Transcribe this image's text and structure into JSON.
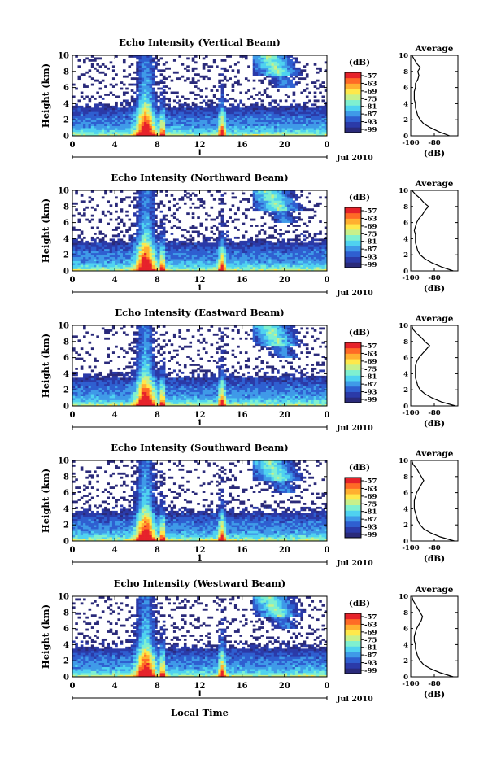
{
  "figure": {
    "xlabel": "Local Time",
    "date_label": "Jul 2010",
    "day_label": "1",
    "colorbar_title": "(dB)",
    "avg_title": "Average",
    "avg_xlabel": "(dB)"
  },
  "colors": {
    "scale": [
      "#2a2a7a",
      "#2b3aa8",
      "#2f5fd0",
      "#3f9ae8",
      "#4fd2f0",
      "#7ff0d0",
      "#c8f08a",
      "#ffe84a",
      "#ffb030",
      "#ff6a26",
      "#e6222a"
    ],
    "background": "#ffffff"
  },
  "chart_data": [
    {
      "type": "heatmap",
      "title": "Echo Intensity (Vertical Beam)",
      "ylabel": "Height (km)",
      "xlim": [
        0,
        24
      ],
      "ylim": [
        0,
        10
      ],
      "xticks": [
        "0",
        "4",
        "8",
        "12",
        "16",
        "20",
        "0"
      ],
      "yticks": [
        "0",
        "2",
        "4",
        "6",
        "8",
        "10"
      ],
      "colorbar": {
        "ticks": [
          "-57",
          "-63",
          "-69",
          "-75",
          "-81",
          "-87",
          "-93",
          "-99"
        ],
        "range": [
          -99,
          -57
        ],
        "unit": "dB"
      },
      "average_profile": {
        "xlim": [
          -100,
          -60
        ],
        "xticks": [
          "-100",
          "-80"
        ],
        "yticks": [
          "0",
          "2",
          "4",
          "6",
          "8",
          "10"
        ],
        "height": [
          0,
          0.5,
          1,
          1.5,
          2,
          2.5,
          3,
          3.5,
          4,
          4.5,
          5,
          5.5,
          6,
          6.5,
          7,
          7.5,
          8,
          8.5,
          9,
          9.5,
          10
        ],
        "db": [
          -67,
          -76,
          -83,
          -89,
          -92,
          -94,
          -95,
          -96,
          -96,
          -97,
          -97,
          -97,
          -96,
          -96,
          -94,
          -93,
          -94,
          -92,
          -95,
          -97,
          -99
        ]
      }
    },
    {
      "type": "heatmap",
      "title": "Echo Intensity (Northward Beam)",
      "ylabel": "Height (km)",
      "xlim": [
        0,
        24
      ],
      "ylim": [
        0,
        10
      ],
      "xticks": [
        "0",
        "4",
        "8",
        "12",
        "16",
        "20",
        "0"
      ],
      "yticks": [
        "0",
        "2",
        "4",
        "6",
        "8",
        "10"
      ],
      "colorbar": {
        "ticks": [
          "-57",
          "-63",
          "-69",
          "-75",
          "-81",
          "-87",
          "-93",
          "-99"
        ],
        "range": [
          -99,
          -57
        ],
        "unit": "dB"
      },
      "average_profile": {
        "xlim": [
          -100,
          -60
        ],
        "xticks": [
          "-100",
          "-80"
        ],
        "yticks": [
          "0",
          "2",
          "4",
          "6",
          "8",
          "10"
        ],
        "height": [
          0,
          0.5,
          1,
          1.5,
          2,
          2.5,
          3,
          3.5,
          4,
          4.5,
          5,
          5.5,
          6,
          6.5,
          7,
          7.5,
          8,
          8.5,
          9,
          9.5,
          10
        ],
        "db": [
          -64,
          -74,
          -82,
          -88,
          -92,
          -94,
          -95,
          -96,
          -96,
          -96,
          -97,
          -96,
          -95,
          -93,
          -90,
          -88,
          -85,
          -89,
          -92,
          -96,
          -99
        ]
      }
    },
    {
      "type": "heatmap",
      "title": "Echo Intensity (Eastward Beam)",
      "ylabel": "Height (km)",
      "xlim": [
        0,
        24
      ],
      "ylim": [
        0,
        10
      ],
      "xticks": [
        "0",
        "4",
        "8",
        "12",
        "16",
        "20",
        "0"
      ],
      "yticks": [
        "0",
        "2",
        "4",
        "6",
        "8",
        "10"
      ],
      "colorbar": {
        "ticks": [
          "-57",
          "-63",
          "-69",
          "-75",
          "-81",
          "-87",
          "-93",
          "-99"
        ],
        "range": [
          -99,
          -57
        ],
        "unit": "dB"
      },
      "average_profile": {
        "xlim": [
          -100,
          -60
        ],
        "xticks": [
          "-100",
          "-80"
        ],
        "yticks": [
          "0",
          "2",
          "4",
          "6",
          "8",
          "10"
        ],
        "height": [
          0,
          0.5,
          1,
          1.5,
          2,
          2.5,
          3,
          3.5,
          4,
          4.5,
          5,
          5.5,
          6,
          6.5,
          7,
          7.5,
          8,
          8.5,
          9,
          9.5,
          10
        ],
        "db": [
          -62,
          -74,
          -82,
          -88,
          -92,
          -94,
          -95,
          -96,
          -96,
          -96,
          -96,
          -95,
          -93,
          -90,
          -87,
          -84,
          -88,
          -91,
          -95,
          -98,
          -99
        ]
      }
    },
    {
      "type": "heatmap",
      "title": "Echo Intensity (Southward Beam)",
      "ylabel": "Height (km)",
      "xlim": [
        0,
        24
      ],
      "ylim": [
        0,
        10
      ],
      "xticks": [
        "0",
        "4",
        "8",
        "12",
        "16",
        "20",
        "0"
      ],
      "yticks": [
        "0",
        "2",
        "4",
        "6",
        "8",
        "10"
      ],
      "colorbar": {
        "ticks": [
          "-57",
          "-63",
          "-69",
          "-75",
          "-81",
          "-87",
          "-93",
          "-99"
        ],
        "range": [
          -99,
          -57
        ],
        "unit": "dB"
      },
      "average_profile": {
        "xlim": [
          -100,
          -60
        ],
        "xticks": [
          "-100",
          "-80"
        ],
        "yticks": [
          "0",
          "2",
          "4",
          "6",
          "8",
          "10"
        ],
        "height": [
          0,
          0.5,
          1,
          1.5,
          2,
          2.5,
          3,
          3.5,
          4,
          4.5,
          5,
          5.5,
          6,
          6.5,
          7,
          7.5,
          8,
          8.5,
          9,
          9.5,
          10
        ],
        "db": [
          -63,
          -75,
          -83,
          -89,
          -92,
          -94,
          -95,
          -96,
          -97,
          -97,
          -97,
          -96,
          -95,
          -93,
          -91,
          -89,
          -91,
          -93,
          -95,
          -98,
          -99
        ]
      }
    },
    {
      "type": "heatmap",
      "title": "Echo Intensity (Westward Beam)",
      "ylabel": "Height (km)",
      "xlim": [
        0,
        24
      ],
      "ylim": [
        0,
        10
      ],
      "xticks": [
        "0",
        "4",
        "8",
        "12",
        "16",
        "20",
        "0"
      ],
      "yticks": [
        "0",
        "2",
        "4",
        "6",
        "8",
        "10"
      ],
      "colorbar": {
        "ticks": [
          "-57",
          "-63",
          "-69",
          "-75",
          "-81",
          "-87",
          "-93",
          "-99"
        ],
        "range": [
          -99,
          -57
        ],
        "unit": "dB"
      },
      "average_profile": {
        "xlim": [
          -100,
          -60
        ],
        "xticks": [
          "-100",
          "-80"
        ],
        "yticks": [
          "0",
          "2",
          "4",
          "6",
          "8",
          "10"
        ],
        "height": [
          0,
          0.5,
          1,
          1.5,
          2,
          2.5,
          3,
          3.5,
          4,
          4.5,
          5,
          5.5,
          6,
          6.5,
          7,
          7.5,
          8,
          8.5,
          9,
          9.5,
          10
        ],
        "db": [
          -64,
          -75,
          -83,
          -89,
          -92,
          -94,
          -95,
          -96,
          -96,
          -97,
          -97,
          -96,
          -95,
          -93,
          -91,
          -90,
          -92,
          -94,
          -96,
          -98,
          -99
        ]
      }
    }
  ]
}
